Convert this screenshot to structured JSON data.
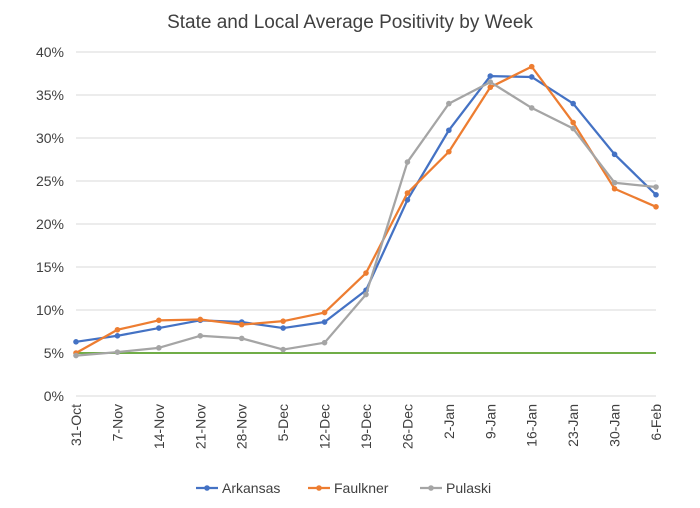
{
  "chart_data": {
    "type": "line",
    "title": "State and Local Average Positivity by Week",
    "xlabel": "",
    "ylabel": "",
    "categories": [
      "31-Oct",
      "7-Nov",
      "14-Nov",
      "21-Nov",
      "28-Nov",
      "5-Dec",
      "12-Dec",
      "19-Dec",
      "26-Dec",
      "2-Jan",
      "9-Jan",
      "16-Jan",
      "23-Jan",
      "30-Jan",
      "6-Feb"
    ],
    "y_ticks": [
      "0%",
      "5%",
      "10%",
      "15%",
      "20%",
      "25%",
      "30%",
      "35%",
      "40%"
    ],
    "ylim": [
      0,
      40
    ],
    "grid": true,
    "legend_position": "bottom",
    "series": [
      {
        "name": "Arkansas",
        "color": "#4472c4",
        "values": [
          6.3,
          7.0,
          7.9,
          8.8,
          8.6,
          7.9,
          8.6,
          12.3,
          22.8,
          30.9,
          37.2,
          37.1,
          34.0,
          28.1,
          23.4
        ]
      },
      {
        "name": "Faulkner",
        "color": "#ed7d31",
        "values": [
          5.0,
          7.7,
          8.8,
          8.9,
          8.3,
          8.7,
          9.7,
          14.3,
          23.6,
          28.4,
          35.9,
          38.3,
          31.8,
          24.1,
          22.0
        ]
      },
      {
        "name": "Pulaski",
        "color": "#a5a5a5",
        "values": [
          4.7,
          5.1,
          5.6,
          7.0,
          6.7,
          5.4,
          6.2,
          11.8,
          27.2,
          34.0,
          36.5,
          33.5,
          31.1,
          24.8,
          24.3
        ]
      }
    ],
    "reference_line": {
      "value": 5,
      "color": "#70ad47"
    }
  }
}
